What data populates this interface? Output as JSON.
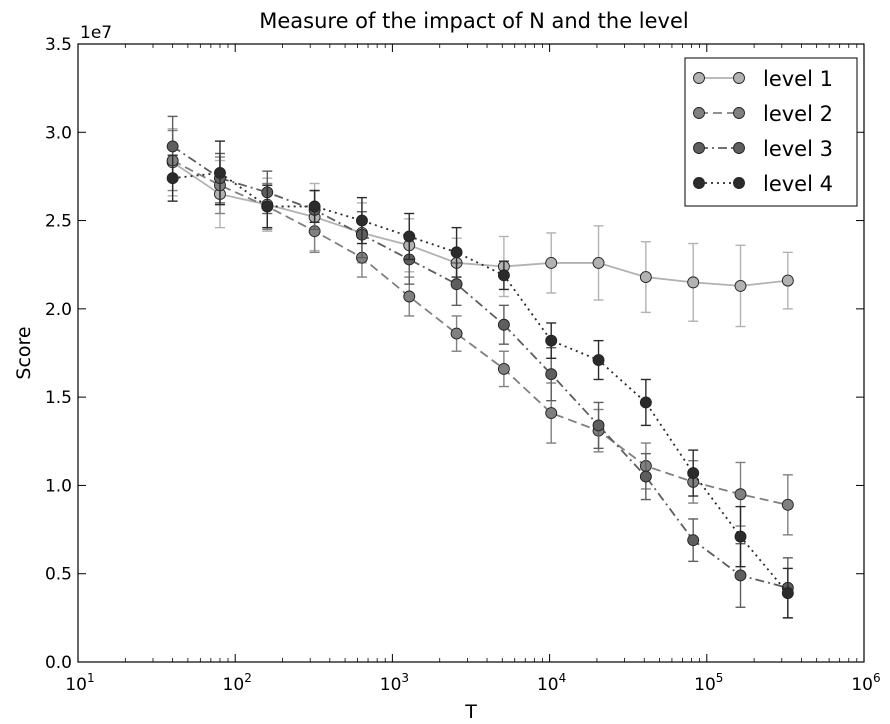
{
  "chart_data": {
    "type": "line",
    "title": "Measure of the impact of N and the level",
    "xlabel": "T",
    "ylabel": "Score",
    "xscale": "log",
    "xlim": [
      10,
      1000000
    ],
    "ylim": [
      0,
      35000000
    ],
    "y_multiplier_label": "1e7",
    "x_ticks": [
      {
        "value": 10,
        "base": "10",
        "exp": "1"
      },
      {
        "value": 100,
        "base": "10",
        "exp": "2"
      },
      {
        "value": 1000,
        "base": "10",
        "exp": "3"
      },
      {
        "value": 10000,
        "base": "10",
        "exp": "4"
      },
      {
        "value": 100000,
        "base": "10",
        "exp": "5"
      },
      {
        "value": 1000000,
        "base": "10",
        "exp": "6"
      }
    ],
    "y_ticks": [
      {
        "value": 0,
        "label": "0.0"
      },
      {
        "value": 5000000,
        "label": "0.5"
      },
      {
        "value": 10000000,
        "label": "1.0"
      },
      {
        "value": 15000000,
        "label": "1.5"
      },
      {
        "value": 20000000,
        "label": "2.0"
      },
      {
        "value": 25000000,
        "label": "2.5"
      },
      {
        "value": 30000000,
        "label": "3.0"
      },
      {
        "value": 35000000,
        "label": "3.5"
      }
    ],
    "grid": false,
    "legend_position": "top-right",
    "x": [
      40,
      80,
      160,
      320,
      640,
      1280,
      2560,
      5120,
      10240,
      20480,
      40960,
      81920,
      163840,
      327680
    ],
    "series": [
      {
        "name": "level 1",
        "color": "#b2b2b2",
        "line_style": "solid",
        "y": [
          28300000,
          26500000,
          25900000,
          25200000,
          24300000,
          23600000,
          22600000,
          22400000,
          22600000,
          22600000,
          21800000,
          21500000,
          21300000,
          21600000
        ],
        "err": [
          1900000,
          1900000,
          1500000,
          1900000,
          1700000,
          1500000,
          1400000,
          1700000,
          1700000,
          2100000,
          2000000,
          2200000,
          2300000,
          1600000
        ]
      },
      {
        "name": "level 2",
        "color": "#808080",
        "line_style": "dashed",
        "y": [
          28400000,
          27000000,
          25800000,
          24400000,
          22900000,
          20700000,
          18600000,
          16600000,
          14100000,
          13100000,
          11100000,
          10200000,
          9500000,
          8900000
        ],
        "err": [
          1700000,
          1600000,
          1300000,
          1200000,
          1100000,
          1100000,
          1000000,
          1000000,
          1700000,
          1200000,
          1300000,
          1200000,
          1800000,
          1700000
        ]
      },
      {
        "name": "level 3",
        "color": "#5e5e5e",
        "line_style": "dashdot",
        "y": [
          29200000,
          27400000,
          26600000,
          25600000,
          24200000,
          22800000,
          21400000,
          19100000,
          16300000,
          13400000,
          10500000,
          6900000,
          4900000,
          4200000
        ],
        "err": [
          1700000,
          1400000,
          1200000,
          1100000,
          1300000,
          1400000,
          1200000,
          1100000,
          1500000,
          1300000,
          1300000,
          1200000,
          1800000,
          1700000
        ]
      },
      {
        "name": "level 4",
        "color": "#2b2b2b",
        "line_style": "dotted",
        "y": [
          27400000,
          27700000,
          25800000,
          25800000,
          25000000,
          24100000,
          23200000,
          21900000,
          18200000,
          17100000,
          14700000,
          10700000,
          7100000,
          3900000
        ],
        "err": [
          1300000,
          1800000,
          1200000,
          900000,
          1300000,
          1300000,
          1400000,
          800000,
          1000000,
          1100000,
          1300000,
          1300000,
          1700000,
          1400000
        ]
      }
    ]
  }
}
